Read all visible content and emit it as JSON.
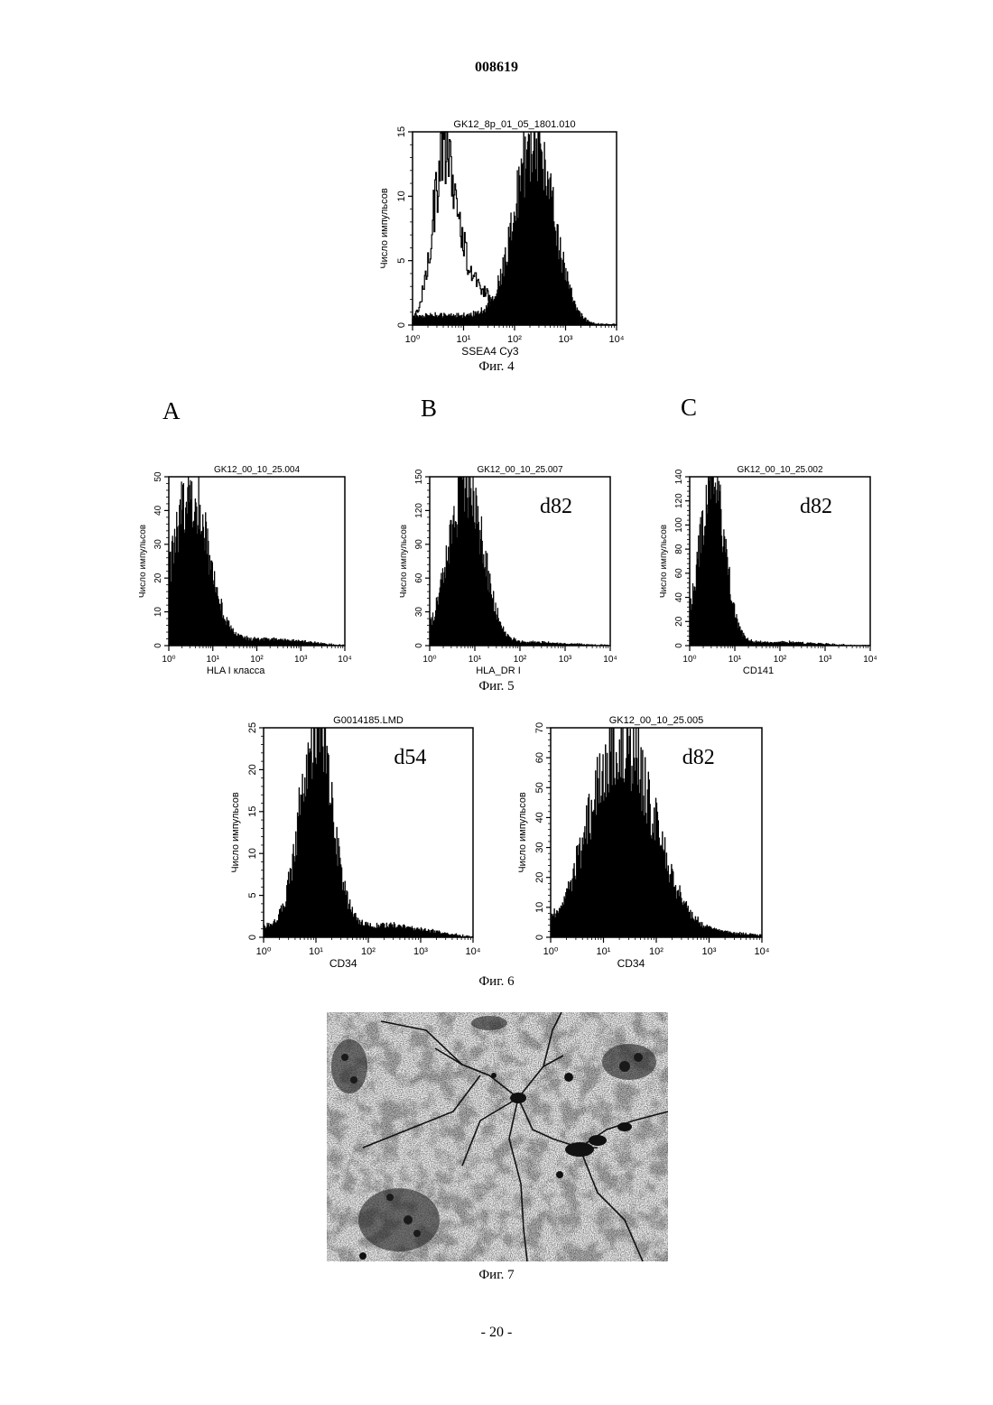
{
  "document_number": "008619",
  "page_number": "- 20 -",
  "fig4_caption": "Фиг. 4",
  "fig5_caption": "Фиг. 5",
  "fig6_caption": "Фиг. 6",
  "fig7_caption": "Фиг. 7",
  "panel_labels": [
    "A",
    "B",
    "C"
  ],
  "chart_data": [
    {
      "id": "fig4",
      "type": "area",
      "title": "GK12_8p_01_05_1801.010",
      "xlabel": "SSEA4 Cy3",
      "ylabel": "Число импульсов",
      "annotation": "",
      "x_scale": "log",
      "x_ticks": [
        "10⁰",
        "10¹",
        "10²",
        "10³",
        "10⁴"
      ],
      "xlim": [
        1,
        10000
      ],
      "ylim": [
        0,
        15
      ],
      "y_ticks": [
        "0",
        "5",
        "10",
        "15"
      ],
      "series": [
        {
          "style": "outline",
          "peak_log": 0.65,
          "sd_log": 0.25,
          "peak_count": 14,
          "tail_log": 1.3,
          "tail_count": 3
        },
        {
          "style": "filled",
          "peak_log": 2.4,
          "sd_log": 0.38,
          "peak_count": 15,
          "tail_log": 0.4,
          "tail_count": 1
        }
      ]
    },
    {
      "id": "fig5a",
      "type": "area",
      "title": "GK12_00_10_25.004",
      "xlabel": "HLA I класса",
      "ylabel": "Число импульсов",
      "annotation": "",
      "x_scale": "log",
      "x_ticks": [
        "10⁰",
        "10¹",
        "10²",
        "10³",
        "10⁴"
      ],
      "xlim": [
        1,
        10000
      ],
      "ylim": [
        0,
        50
      ],
      "y_ticks": [
        "0",
        "10",
        "20",
        "30",
        "40",
        "50"
      ],
      "series": [
        {
          "style": "filled",
          "peak_log": 0.5,
          "sd_log": 0.4,
          "peak_count": 46,
          "tail_log": 2.5,
          "tail_count": 2
        }
      ]
    },
    {
      "id": "fig5b",
      "type": "area",
      "title": "GK12_00_10_25.007",
      "xlabel": "HLA_DR I",
      "ylabel": "Число импульсов",
      "annotation": "d82",
      "x_scale": "log",
      "x_ticks": [
        "10⁰",
        "10¹",
        "10²",
        "10³",
        "10⁴"
      ],
      "xlim": [
        1,
        10000
      ],
      "ylim": [
        0,
        150
      ],
      "y_ticks": [
        "0",
        "30",
        "60",
        "90",
        "120",
        "150"
      ],
      "series": [
        {
          "style": "filled",
          "peak_log": 0.8,
          "sd_log": 0.38,
          "peak_count": 147,
          "tail_log": 2.5,
          "tail_count": 3
        }
      ]
    },
    {
      "id": "fig5c",
      "type": "area",
      "title": "GK12_00_10_25.002",
      "xlabel": "CD141",
      "ylabel": "Число импульсов",
      "annotation": "d82",
      "x_scale": "log",
      "x_ticks": [
        "10⁰",
        "10¹",
        "10²",
        "10³",
        "10⁴"
      ],
      "xlim": [
        1,
        10000
      ],
      "ylim": [
        0,
        140
      ],
      "y_ticks": [
        "0",
        "20",
        "40",
        "60",
        "80",
        "100",
        "120",
        "140"
      ],
      "series": [
        {
          "style": "filled",
          "peak_log": 0.5,
          "sd_log": 0.28,
          "peak_count": 138,
          "tail_log": 2.2,
          "tail_count": 3
        }
      ]
    },
    {
      "id": "fig6a",
      "type": "area",
      "title": "G0014185.LMD",
      "xlabel": "CD34",
      "ylabel": "Число импульсов",
      "annotation": "d54",
      "x_scale": "log",
      "x_ticks": [
        "10⁰",
        "10¹",
        "10²",
        "10³",
        "10⁴"
      ],
      "xlim": [
        1,
        10000
      ],
      "ylim": [
        0,
        25
      ],
      "y_ticks": [
        "0",
        "5",
        "10",
        "15",
        "20",
        "25"
      ],
      "series": [
        {
          "style": "filled",
          "peak_log": 1.0,
          "sd_log": 0.3,
          "peak_count": 25,
          "tail_log": 2.5,
          "tail_count": 1.5
        }
      ]
    },
    {
      "id": "fig6b",
      "type": "area",
      "title": "GK12_00_10_25.005",
      "xlabel": "CD34",
      "ylabel": "Число импульсов",
      "annotation": "d82",
      "x_scale": "log",
      "x_ticks": [
        "10⁰",
        "10¹",
        "10²",
        "10³",
        "10⁴"
      ],
      "xlim": [
        1,
        10000
      ],
      "ylim": [
        0,
        70
      ],
      "y_ticks": [
        "0",
        "10",
        "20",
        "30",
        "40",
        "50",
        "60",
        "70"
      ],
      "series": [
        {
          "style": "filled",
          "peak_log": 1.35,
          "sd_log": 0.6,
          "peak_count": 68,
          "tail_log": 3.0,
          "tail_count": 2
        }
      ]
    }
  ]
}
